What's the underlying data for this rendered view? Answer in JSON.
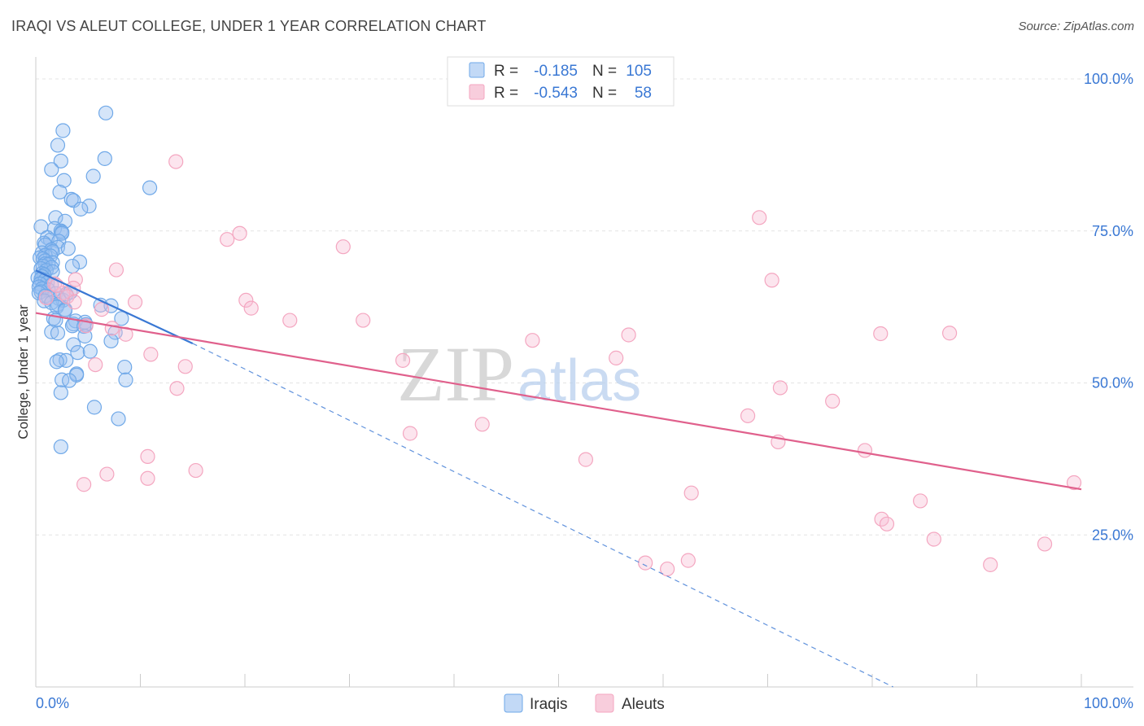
{
  "chart_data": {
    "type": "scatter",
    "title": "IRAQI VS ALEUT COLLEGE, UNDER 1 YEAR CORRELATION CHART",
    "source": "Source: ZipAtlas.com",
    "xlabel": "",
    "ylabel": "College, Under 1 year",
    "xlim": [
      0,
      100
    ],
    "ylim": [
      0,
      100
    ],
    "x_tick_labels": [
      "0.0%",
      "100.0%"
    ],
    "y_ticks": [
      {
        "value": 25,
        "label": "25.0%"
      },
      {
        "value": 50,
        "label": "50.0%"
      },
      {
        "value": 75,
        "label": "75.0%"
      },
      {
        "value": 100,
        "label": "100.0%"
      }
    ],
    "grid": true,
    "watermark": {
      "zip": "ZIP",
      "atlas": "atlas"
    },
    "stats_box": [
      {
        "r_label": "R =",
        "r_value": "-0.185",
        "n_label": "N =",
        "n_value": "105"
      },
      {
        "r_label": "R =",
        "r_value": "-0.543",
        "n_label": "N =",
        "n_value": "58"
      }
    ],
    "series": [
      {
        "name": "Iraqis",
        "color": "#6fa8e8",
        "line_color": "#3a78d4",
        "trend_solid": {
          "x": [
            0,
            15
          ],
          "y": [
            68.5,
            56.5
          ]
        },
        "trend_dashed": {
          "x": [
            15,
            82
          ],
          "y": [
            56.5,
            0
          ]
        },
        "points": [
          [
            6.7,
            94.4
          ],
          [
            2.6,
            91.5
          ],
          [
            2.1,
            89.1
          ],
          [
            6.6,
            86.9
          ],
          [
            2.4,
            86.5
          ],
          [
            1.5,
            85.1
          ],
          [
            5.5,
            84.0
          ],
          [
            2.7,
            83.3
          ],
          [
            10.9,
            82.1
          ],
          [
            2.3,
            81.4
          ],
          [
            3.4,
            80.2
          ],
          [
            3.6,
            80.0
          ],
          [
            5.1,
            79.1
          ],
          [
            4.3,
            78.6
          ],
          [
            1.9,
            77.2
          ],
          [
            2.8,
            76.6
          ],
          [
            0.5,
            75.7
          ],
          [
            1.8,
            75.4
          ],
          [
            2.4,
            75.0
          ],
          [
            2.5,
            74.8
          ],
          [
            2.5,
            74.6
          ],
          [
            1.1,
            73.9
          ],
          [
            1.4,
            73.5
          ],
          [
            2.2,
            73.3
          ],
          [
            0.8,
            73.0
          ],
          [
            0.9,
            72.7
          ],
          [
            2.1,
            72.3
          ],
          [
            3.1,
            72.1
          ],
          [
            1.5,
            71.9
          ],
          [
            1.6,
            71.6
          ],
          [
            0.6,
            71.4
          ],
          [
            0.9,
            71.0
          ],
          [
            1.4,
            70.9
          ],
          [
            0.4,
            70.6
          ],
          [
            0.7,
            70.4
          ],
          [
            0.9,
            70.1
          ],
          [
            1.6,
            69.8
          ],
          [
            4.2,
            69.9
          ],
          [
            0.9,
            69.6
          ],
          [
            1.2,
            69.5
          ],
          [
            0.7,
            69.2
          ],
          [
            1.5,
            69.0
          ],
          [
            3.5,
            69.2
          ],
          [
            0.5,
            68.8
          ],
          [
            1.0,
            68.5
          ],
          [
            1.6,
            68.3
          ],
          [
            0.6,
            68.0
          ],
          [
            0.8,
            67.8
          ],
          [
            0.6,
            67.5
          ],
          [
            0.2,
            67.3
          ],
          [
            0.5,
            67.1
          ],
          [
            0.9,
            66.9
          ],
          [
            1.1,
            66.5
          ],
          [
            0.4,
            66.3
          ],
          [
            1.5,
            66.1
          ],
          [
            0.3,
            65.8
          ],
          [
            0.6,
            65.5
          ],
          [
            1.2,
            65.3
          ],
          [
            0.5,
            65.0
          ],
          [
            0.3,
            64.8
          ],
          [
            1.9,
            64.7
          ],
          [
            2.9,
            64.6
          ],
          [
            0.9,
            64.3
          ],
          [
            1.2,
            64.1
          ],
          [
            2.2,
            63.9
          ],
          [
            2.6,
            63.6
          ],
          [
            0.8,
            63.5
          ],
          [
            1.5,
            63.2
          ],
          [
            2.1,
            62.9
          ],
          [
            6.2,
            62.8
          ],
          [
            7.2,
            62.7
          ],
          [
            2.0,
            62.5
          ],
          [
            2.8,
            62.1
          ],
          [
            2.8,
            61.9
          ],
          [
            1.7,
            60.6
          ],
          [
            8.2,
            60.6
          ],
          [
            1.9,
            60.3
          ],
          [
            3.8,
            60.2
          ],
          [
            4.7,
            60.0
          ],
          [
            3.6,
            59.7
          ],
          [
            4.8,
            59.6
          ],
          [
            3.5,
            59.4
          ],
          [
            4.6,
            59.3
          ],
          [
            1.5,
            58.4
          ],
          [
            2.1,
            58.2
          ],
          [
            7.6,
            58.3
          ],
          [
            4.7,
            57.7
          ],
          [
            7.2,
            56.9
          ],
          [
            3.6,
            56.3
          ],
          [
            4.0,
            55.0
          ],
          [
            5.2,
            55.2
          ],
          [
            2.3,
            53.8
          ],
          [
            2.9,
            53.7
          ],
          [
            2.0,
            53.5
          ],
          [
            8.5,
            52.6
          ],
          [
            3.9,
            51.5
          ],
          [
            3.9,
            51.3
          ],
          [
            2.5,
            50.5
          ],
          [
            8.6,
            50.5
          ],
          [
            3.2,
            50.4
          ],
          [
            2.4,
            48.4
          ],
          [
            5.6,
            46.0
          ],
          [
            7.9,
            44.1
          ],
          [
            2.4,
            39.5
          ],
          [
            3.3,
            64.9
          ]
        ]
      },
      {
        "name": "Aleuts",
        "color": "#f4a6c0",
        "line_color": "#e0608c",
        "trend_solid": {
          "x": [
            0,
            100
          ],
          "y": [
            61.5,
            32.5
          ]
        },
        "points": [
          [
            13.4,
            86.4
          ],
          [
            69.2,
            77.2
          ],
          [
            19.5,
            74.6
          ],
          [
            18.3,
            73.6
          ],
          [
            29.4,
            72.4
          ],
          [
            7.7,
            68.6
          ],
          [
            70.4,
            66.9
          ],
          [
            3.8,
            67.0
          ],
          [
            1.8,
            66.3
          ],
          [
            3.6,
            65.6
          ],
          [
            2.6,
            64.8
          ],
          [
            3.0,
            64.2
          ],
          [
            20.1,
            63.6
          ],
          [
            9.5,
            63.3
          ],
          [
            3.7,
            63.3
          ],
          [
            20.6,
            62.3
          ],
          [
            6.3,
            62.1
          ],
          [
            24.3,
            60.3
          ],
          [
            31.3,
            60.3
          ],
          [
            4.8,
            59.4
          ],
          [
            7.3,
            59.0
          ],
          [
            8.6,
            58.0
          ],
          [
            80.8,
            58.1
          ],
          [
            87.4,
            58.2
          ],
          [
            56.7,
            57.9
          ],
          [
            47.5,
            57.0
          ],
          [
            55.5,
            54.1
          ],
          [
            11.0,
            54.7
          ],
          [
            35.1,
            53.7
          ],
          [
            14.3,
            52.7
          ],
          [
            5.7,
            53.0
          ],
          [
            71.2,
            49.2
          ],
          [
            13.5,
            49.1
          ],
          [
            76.2,
            47.0
          ],
          [
            68.1,
            44.6
          ],
          [
            42.7,
            43.2
          ],
          [
            35.8,
            41.7
          ],
          [
            71.0,
            40.3
          ],
          [
            79.3,
            38.9
          ],
          [
            10.7,
            37.9
          ],
          [
            52.6,
            37.4
          ],
          [
            15.3,
            35.6
          ],
          [
            6.8,
            35.0
          ],
          [
            10.7,
            34.3
          ],
          [
            99.3,
            33.6
          ],
          [
            4.6,
            33.3
          ],
          [
            62.7,
            31.9
          ],
          [
            84.6,
            30.6
          ],
          [
            80.9,
            27.6
          ],
          [
            81.4,
            26.8
          ],
          [
            85.9,
            24.3
          ],
          [
            96.5,
            23.5
          ],
          [
            62.4,
            20.8
          ],
          [
            58.3,
            20.4
          ],
          [
            91.3,
            20.1
          ],
          [
            60.4,
            19.4
          ],
          [
            1.0,
            64.0
          ],
          [
            2.0,
            66.0
          ]
        ]
      }
    ]
  }
}
